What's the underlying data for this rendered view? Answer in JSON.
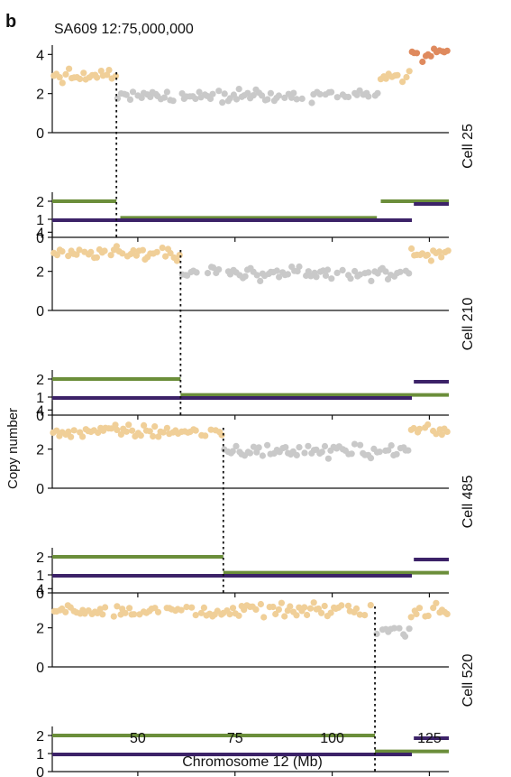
{
  "panel_letter": "b",
  "title": "SA609 12:75,000,000",
  "y_label": "Copy number",
  "x_label": "Chromosome 12 (Mb)",
  "colors": {
    "gain": "#f0cf98",
    "neutral": "#c9c9c9",
    "high": "#df8a5e",
    "major_allele": "#6b8e3a",
    "minor_allele": "#3c2268",
    "axis": "#111111",
    "breakpoint": "#111111"
  },
  "chart_data": {
    "type": "scatter",
    "xlim": [
      28,
      130
    ],
    "x_ticks": [
      50,
      75,
      100,
      125
    ],
    "x_tick_labels": [
      "50",
      "75",
      "100",
      "125"
    ],
    "copy_number_ylim": [
      0,
      4.2
    ],
    "copy_number_ticks": [
      0,
      2,
      4
    ],
    "allele_ylim": [
      0,
      2.3
    ],
    "allele_ticks": [
      0,
      1,
      2
    ],
    "panels": [
      {
        "cell": "Cell 25",
        "breakpoint": 44.5,
        "segments": [
          {
            "start": 28,
            "end": 44.5,
            "state": 3,
            "class": "gain"
          },
          {
            "start": 44.5,
            "end": 112,
            "state": 2,
            "class": "neutral"
          },
          {
            "start": 112,
            "end": 120,
            "state": 3,
            "class": "gain"
          },
          {
            "start": 120,
            "end": 130,
            "state": 4,
            "class": "high"
          }
        ],
        "alleles": [
          {
            "allele": "major",
            "start": 28,
            "end": 44.5,
            "value": 2
          },
          {
            "allele": "major",
            "start": 45.5,
            "end": 111.5,
            "value": 1.08
          },
          {
            "allele": "major",
            "start": 112.5,
            "end": 130,
            "value": 2
          },
          {
            "allele": "minor",
            "start": 28,
            "end": 120.5,
            "value": 0.95
          },
          {
            "allele": "minor",
            "start": 121,
            "end": 130,
            "value": 1.85
          }
        ]
      },
      {
        "cell": "Cell 210",
        "breakpoint": 61,
        "segments": [
          {
            "start": 28,
            "end": 61,
            "state": 3,
            "class": "gain"
          },
          {
            "start": 61,
            "end": 120,
            "state": 2,
            "class": "neutral"
          },
          {
            "start": 120,
            "end": 130,
            "state": 3,
            "class": "gain"
          }
        ],
        "alleles": [
          {
            "allele": "major",
            "start": 28,
            "end": 61,
            "value": 2
          },
          {
            "allele": "major",
            "start": 61,
            "end": 130,
            "value": 1.12
          },
          {
            "allele": "minor",
            "start": 28,
            "end": 120.5,
            "value": 0.95
          },
          {
            "allele": "minor",
            "start": 121,
            "end": 130,
            "value": 1.85
          }
        ]
      },
      {
        "cell": "Cell 485",
        "breakpoint": 72,
        "segments": [
          {
            "start": 28,
            "end": 72,
            "state": 3,
            "class": "gain"
          },
          {
            "start": 72,
            "end": 120,
            "state": 2,
            "class": "neutral"
          },
          {
            "start": 120,
            "end": 130,
            "state": 3,
            "class": "gain"
          }
        ],
        "alleles": [
          {
            "allele": "major",
            "start": 28,
            "end": 72,
            "value": 2
          },
          {
            "allele": "major",
            "start": 72,
            "end": 130,
            "value": 1.12
          },
          {
            "allele": "minor",
            "start": 28,
            "end": 120.5,
            "value": 0.95
          },
          {
            "allele": "minor",
            "start": 121,
            "end": 130,
            "value": 1.85
          }
        ]
      },
      {
        "cell": "Cell 520",
        "breakpoint": 111,
        "segments": [
          {
            "start": 28,
            "end": 111,
            "state": 3,
            "class": "gain"
          },
          {
            "start": 111,
            "end": 120,
            "state": 2,
            "class": "neutral"
          },
          {
            "start": 120,
            "end": 130,
            "state": 3,
            "class": "gain"
          }
        ],
        "alleles": [
          {
            "allele": "major",
            "start": 28,
            "end": 111,
            "value": 2
          },
          {
            "allele": "major",
            "start": 111,
            "end": 130,
            "value": 1.12
          },
          {
            "allele": "minor",
            "start": 28,
            "end": 120.5,
            "value": 0.95
          },
          {
            "allele": "minor",
            "start": 121,
            "end": 130,
            "value": 1.85
          }
        ]
      }
    ]
  }
}
